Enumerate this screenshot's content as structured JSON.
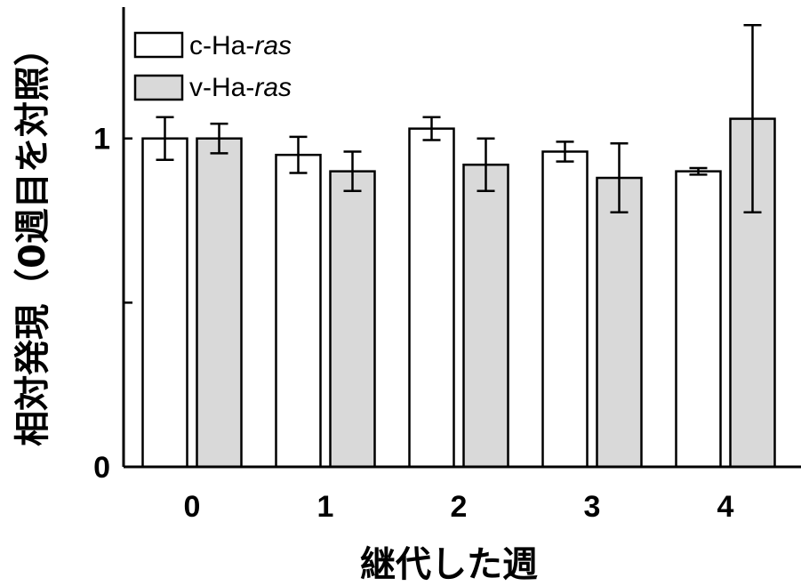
{
  "chart_data": {
    "type": "bar",
    "xlabel": "継代した週",
    "ylabel": "相対発現（0週目を対照）",
    "categories": [
      "0",
      "1",
      "2",
      "3",
      "4"
    ],
    "ylim": [
      0,
      1.4
    ],
    "yticks": [
      0,
      0.5,
      1
    ],
    "ytick_labels": [
      "0",
      "",
      "1"
    ],
    "series": [
      {
        "name_prefix": "c-Ha-",
        "name_italic": "ras",
        "color": "#ffffff",
        "values": [
          1.0,
          0.95,
          1.03,
          0.96,
          0.9
        ],
        "errors": [
          0.065,
          0.055,
          0.035,
          0.03,
          0.01
        ]
      },
      {
        "name_prefix": "v-Ha-",
        "name_italic": "ras",
        "color": "#d9d9d9",
        "values": [
          1.0,
          0.9,
          0.92,
          0.88,
          1.06
        ],
        "errors": [
          0.045,
          0.06,
          0.08,
          0.105,
          0.285
        ]
      }
    ],
    "legend": "top-left",
    "grid": false
  }
}
